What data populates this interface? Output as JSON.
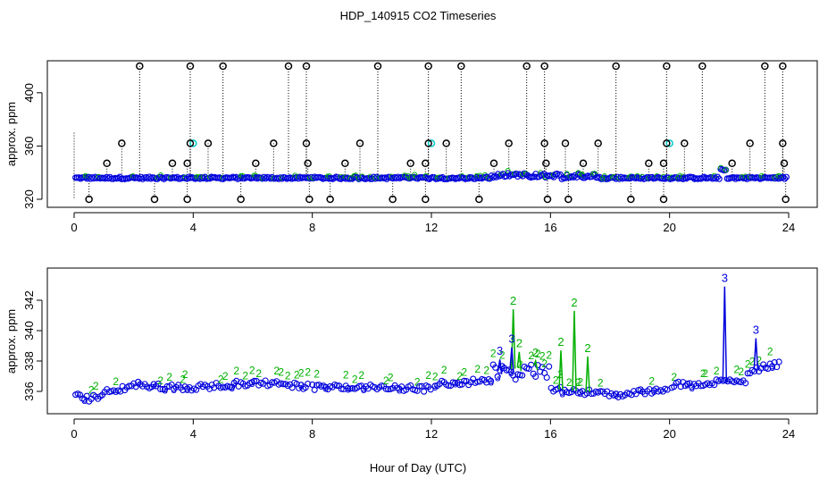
{
  "title": "HDP_140915  CO2 Timeseries",
  "xlabel": "Hour of Day (UTC)",
  "colors": {
    "outlier": "#000000",
    "series1": "#00c8c8",
    "series2": "#00b000",
    "series3": "#0000dd",
    "axis": "#000000",
    "drop": "#000000"
  },
  "chart_data": [
    {
      "type": "scatter",
      "panel": "top",
      "ylabel": "approx. ppm",
      "xlim": [
        0,
        24
      ],
      "ylim": [
        320,
        420
      ],
      "x_ticks": [
        0,
        4,
        8,
        12,
        16,
        20,
        24
      ],
      "y_ticks": [
        320,
        360,
        400
      ],
      "baseline_ppm": 336,
      "outliers_high_x": [
        2.2,
        3.9,
        5.0,
        7.2,
        7.8,
        10.2,
        11.9,
        13.0,
        15.2,
        15.8,
        18.2,
        19.9,
        21.1,
        23.2,
        23.8
      ],
      "outliers_high_y": 420,
      "outliers_low_x": [
        0.5,
        2.7,
        3.8,
        5.6,
        7.9,
        8.6,
        10.7,
        11.8,
        13.6,
        15.9,
        16.6,
        18.7,
        19.8,
        23.9
      ],
      "outliers_low_y": 320,
      "outliers_mid": [
        {
          "x": 1.1,
          "y": 347
        },
        {
          "x": 1.6,
          "y": 362
        },
        {
          "x": 3.3,
          "y": 347
        },
        {
          "x": 3.8,
          "y": 347
        },
        {
          "x": 3.9,
          "y": 362
        },
        {
          "x": 4.5,
          "y": 362
        },
        {
          "x": 6.1,
          "y": 347
        },
        {
          "x": 6.7,
          "y": 362
        },
        {
          "x": 7.8,
          "y": 362
        },
        {
          "x": 7.85,
          "y": 347
        },
        {
          "x": 9.1,
          "y": 347
        },
        {
          "x": 9.6,
          "y": 362
        },
        {
          "x": 11.3,
          "y": 347
        },
        {
          "x": 11.8,
          "y": 347
        },
        {
          "x": 11.9,
          "y": 362
        },
        {
          "x": 12.5,
          "y": 362
        },
        {
          "x": 14.1,
          "y": 347
        },
        {
          "x": 14.6,
          "y": 362
        },
        {
          "x": 15.8,
          "y": 362
        },
        {
          "x": 15.85,
          "y": 347
        },
        {
          "x": 16.5,
          "y": 362
        },
        {
          "x": 17.1,
          "y": 347
        },
        {
          "x": 17.6,
          "y": 362
        },
        {
          "x": 19.3,
          "y": 347
        },
        {
          "x": 19.8,
          "y": 347
        },
        {
          "x": 19.9,
          "y": 362
        },
        {
          "x": 20.5,
          "y": 362
        },
        {
          "x": 22.1,
          "y": 347
        },
        {
          "x": 22.7,
          "y": 362
        },
        {
          "x": 23.8,
          "y": 362
        },
        {
          "x": 23.85,
          "y": 347
        }
      ],
      "cyan_points": [
        {
          "x": 4.0,
          "y": 362
        },
        {
          "x": 12.0,
          "y": 362
        },
        {
          "x": 20.0,
          "y": 362
        }
      ]
    },
    {
      "type": "scatter",
      "panel": "bottom",
      "ylabel": "approx. ppm",
      "xlim": [
        0,
        24
      ],
      "ylim": [
        335,
        344
      ],
      "x_ticks": [
        0,
        4,
        8,
        12,
        16,
        20,
        24
      ],
      "y_ticks": [
        336,
        338,
        340,
        342
      ],
      "gaps": [
        [
          7.9,
          8.0
        ],
        [
          12.0,
          12.05
        ],
        [
          15.95,
          16.0
        ],
        [
          19.95,
          20.0
        ]
      ],
      "spikes_series2": [
        {
          "x": 14.75,
          "y": 341.7
        },
        {
          "x": 16.8,
          "y": 341.6
        },
        {
          "x": 16.35,
          "y": 339.0
        },
        {
          "x": 17.25,
          "y": 338.6
        },
        {
          "x": 14.95,
          "y": 338.9
        },
        {
          "x": 15.5,
          "y": 338.3
        }
      ],
      "spikes_series3": [
        {
          "x": 21.85,
          "y": 343.2
        },
        {
          "x": 22.9,
          "y": 339.8
        },
        {
          "x": 14.7,
          "y": 339.2
        },
        {
          "x": 14.3,
          "y": 338.4
        }
      ],
      "legend_markers": [
        "2",
        "3"
      ]
    }
  ]
}
